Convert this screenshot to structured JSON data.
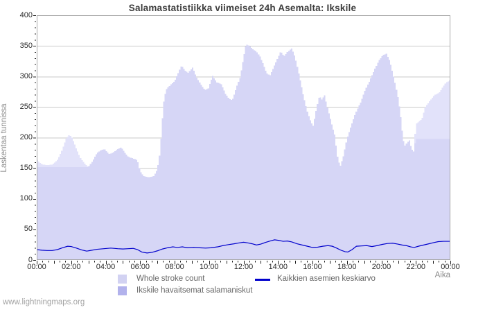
{
  "title": "Salamastatistiikka viimeiset 24h Asemalta: Ikskile",
  "watermark": "www.lightningmaps.org",
  "axes": {
    "y_label": "Laskentaa tunnissa",
    "x_label": "Aika",
    "y_ticks": [
      0,
      50,
      100,
      150,
      200,
      250,
      300,
      350,
      400
    ],
    "x_tick_labels": [
      "00:00",
      "02:00",
      "04:00",
      "06:00",
      "08:00",
      "10:00",
      "12:00",
      "14:00",
      "16:00",
      "18:00",
      "20:00",
      "22:00",
      "00:00"
    ]
  },
  "legend": {
    "items": [
      {
        "label": "Whole stroke count",
        "type": "area",
        "swatch_color": "#d2d2f2"
      },
      {
        "label": "Ikskile havaitsemat salamaniskut",
        "type": "area",
        "swatch_color": "#b2b2ec"
      },
      {
        "label": "Kaikkien asemien keskiarvo",
        "type": "line",
        "swatch_color": "#0000cc"
      }
    ]
  },
  "colors": {
    "background": "#ffffff",
    "plot_border": "#a6a6a6",
    "gridline": "#c9c9c9",
    "tick": "#222222",
    "tick_label": "#2b2b2b",
    "title_text": "#3c3c3c",
    "axis_title_text": "#8a8a8a",
    "legend_text": "#666666",
    "watermark_text": "#a3a3a3",
    "area_whole": "#e2e2fa",
    "area_ikskile": "#d6d6f6",
    "avg_line": "#0000cc"
  },
  "chart_data": {
    "type": "area",
    "title": "Salamastatistiikka viimeiset 24h Asemalta: Ikskile",
    "xlabel": "Aika",
    "ylabel": "Laskentaa tunnissa",
    "x_unit": "hours",
    "xlim": [
      0,
      24
    ],
    "ylim": [
      0,
      400
    ],
    "grid": "horizontal",
    "legend_position": "bottom",
    "series": [
      {
        "name": "Whole stroke count",
        "type": "area",
        "points": [
          [
            0.0,
            165
          ],
          [
            0.15,
            160
          ],
          [
            0.35,
            156
          ],
          [
            0.6,
            155
          ],
          [
            0.9,
            156
          ],
          [
            1.2,
            163
          ],
          [
            1.45,
            178
          ],
          [
            1.7,
            198
          ],
          [
            1.9,
            205
          ],
          [
            2.05,
            200
          ],
          [
            2.3,
            182
          ],
          [
            2.55,
            166
          ],
          [
            2.8,
            157
          ],
          [
            3.0,
            152
          ],
          [
            3.2,
            160
          ],
          [
            3.5,
            175
          ],
          [
            3.75,
            180
          ],
          [
            3.95,
            181
          ],
          [
            4.2,
            173
          ],
          [
            4.45,
            176
          ],
          [
            4.7,
            181
          ],
          [
            4.9,
            184
          ],
          [
            5.1,
            176
          ],
          [
            5.3,
            169
          ],
          [
            5.6,
            166
          ],
          [
            5.85,
            163
          ],
          [
            6.0,
            145
          ],
          [
            6.2,
            137
          ],
          [
            6.5,
            135
          ],
          [
            6.8,
            137
          ],
          [
            7.0,
            148
          ],
          [
            7.15,
            175
          ],
          [
            7.35,
            255
          ],
          [
            7.5,
            278
          ],
          [
            7.75,
            286
          ],
          [
            8.0,
            292
          ],
          [
            8.2,
            305
          ],
          [
            8.4,
            318
          ],
          [
            8.6,
            310
          ],
          [
            8.8,
            306
          ],
          [
            9.05,
            315
          ],
          [
            9.25,
            300
          ],
          [
            9.5,
            288
          ],
          [
            9.75,
            278
          ],
          [
            9.95,
            280
          ],
          [
            10.2,
            301
          ],
          [
            10.45,
            290
          ],
          [
            10.7,
            288
          ],
          [
            10.95,
            272
          ],
          [
            11.15,
            264
          ],
          [
            11.35,
            261
          ],
          [
            11.6,
            283
          ],
          [
            11.8,
            298
          ],
          [
            12.0,
            330
          ],
          [
            12.15,
            353
          ],
          [
            12.35,
            350
          ],
          [
            12.55,
            344
          ],
          [
            12.75,
            341
          ],
          [
            12.95,
            333
          ],
          [
            13.15,
            320
          ],
          [
            13.35,
            305
          ],
          [
            13.55,
            302
          ],
          [
            13.75,
            315
          ],
          [
            13.95,
            328
          ],
          [
            14.15,
            341
          ],
          [
            14.35,
            333
          ],
          [
            14.55,
            340
          ],
          [
            14.8,
            346
          ],
          [
            15.0,
            331
          ],
          [
            15.2,
            306
          ],
          [
            15.45,
            272
          ],
          [
            15.7,
            243
          ],
          [
            15.9,
            226
          ],
          [
            16.05,
            219
          ],
          [
            16.25,
            250
          ],
          [
            16.4,
            268
          ],
          [
            16.55,
            262
          ],
          [
            16.7,
            270
          ],
          [
            16.9,
            246
          ],
          [
            17.1,
            224
          ],
          [
            17.3,
            204
          ],
          [
            17.45,
            170
          ],
          [
            17.6,
            152
          ],
          [
            17.8,
            170
          ],
          [
            18.0,
            198
          ],
          [
            18.25,
            220
          ],
          [
            18.5,
            240
          ],
          [
            18.8,
            258
          ],
          [
            19.05,
            277
          ],
          [
            19.3,
            292
          ],
          [
            19.6,
            311
          ],
          [
            19.85,
            326
          ],
          [
            20.1,
            335
          ],
          [
            20.3,
            337
          ],
          [
            20.5,
            324
          ],
          [
            20.75,
            295
          ],
          [
            20.95,
            268
          ],
          [
            21.1,
            240
          ],
          [
            21.25,
            200
          ],
          [
            21.35,
            186
          ],
          [
            21.5,
            192
          ],
          [
            21.62,
            196
          ],
          [
            21.75,
            182
          ],
          [
            21.88,
            177
          ],
          [
            22.0,
            222
          ],
          [
            22.2,
            227
          ],
          [
            22.35,
            230
          ],
          [
            22.55,
            250
          ],
          [
            22.75,
            258
          ],
          [
            22.95,
            265
          ],
          [
            23.15,
            271
          ],
          [
            23.35,
            273
          ],
          [
            23.55,
            282
          ],
          [
            23.75,
            290
          ],
          [
            23.95,
            293
          ],
          [
            24.0,
            295
          ]
        ]
      },
      {
        "name": "Ikskile havaitsemat salamaniskut",
        "type": "area",
        "points": [
          [
            0.0,
            152
          ],
          [
            0.6,
            152
          ],
          [
            1.2,
            152
          ],
          [
            1.9,
            152
          ],
          [
            2.55,
            152
          ],
          [
            3.0,
            152
          ],
          [
            3.2,
            160
          ],
          [
            3.5,
            175
          ],
          [
            3.75,
            180
          ],
          [
            3.95,
            181
          ],
          [
            4.2,
            173
          ],
          [
            4.45,
            176
          ],
          [
            4.7,
            181
          ],
          [
            4.9,
            184
          ],
          [
            5.1,
            176
          ],
          [
            5.3,
            169
          ],
          [
            5.6,
            166
          ],
          [
            5.85,
            163
          ],
          [
            6.0,
            145
          ],
          [
            6.2,
            137
          ],
          [
            6.5,
            135
          ],
          [
            6.8,
            137
          ],
          [
            7.0,
            148
          ],
          [
            7.15,
            175
          ],
          [
            7.35,
            255
          ],
          [
            7.5,
            278
          ],
          [
            7.75,
            286
          ],
          [
            8.0,
            292
          ],
          [
            8.2,
            305
          ],
          [
            8.4,
            318
          ],
          [
            8.6,
            310
          ],
          [
            8.8,
            306
          ],
          [
            9.05,
            315
          ],
          [
            9.25,
            300
          ],
          [
            9.5,
            288
          ],
          [
            9.75,
            278
          ],
          [
            9.95,
            280
          ],
          [
            10.2,
            301
          ],
          [
            10.45,
            290
          ],
          [
            10.7,
            288
          ],
          [
            10.95,
            272
          ],
          [
            11.15,
            264
          ],
          [
            11.35,
            261
          ],
          [
            11.6,
            283
          ],
          [
            11.8,
            298
          ],
          [
            12.0,
            330
          ],
          [
            12.15,
            353
          ],
          [
            12.35,
            350
          ],
          [
            12.55,
            344
          ],
          [
            12.75,
            341
          ],
          [
            12.95,
            333
          ],
          [
            13.15,
            320
          ],
          [
            13.35,
            305
          ],
          [
            13.55,
            302
          ],
          [
            13.75,
            315
          ],
          [
            13.95,
            328
          ],
          [
            14.15,
            341
          ],
          [
            14.35,
            333
          ],
          [
            14.55,
            340
          ],
          [
            14.8,
            346
          ],
          [
            15.0,
            331
          ],
          [
            15.2,
            306
          ],
          [
            15.45,
            272
          ],
          [
            15.7,
            243
          ],
          [
            15.9,
            226
          ],
          [
            16.05,
            219
          ],
          [
            16.25,
            250
          ],
          [
            16.4,
            268
          ],
          [
            16.55,
            262
          ],
          [
            16.7,
            270
          ],
          [
            16.9,
            246
          ],
          [
            17.1,
            224
          ],
          [
            17.3,
            204
          ],
          [
            17.45,
            170
          ],
          [
            17.6,
            152
          ],
          [
            17.8,
            170
          ],
          [
            18.0,
            198
          ],
          [
            18.25,
            220
          ],
          [
            18.5,
            240
          ],
          [
            18.8,
            258
          ],
          [
            19.05,
            277
          ],
          [
            19.3,
            292
          ],
          [
            19.6,
            311
          ],
          [
            19.85,
            326
          ],
          [
            20.1,
            335
          ],
          [
            20.3,
            337
          ],
          [
            20.5,
            324
          ],
          [
            20.75,
            295
          ],
          [
            20.95,
            268
          ],
          [
            21.1,
            240
          ],
          [
            21.25,
            200
          ],
          [
            21.35,
            186
          ],
          [
            21.5,
            192
          ],
          [
            21.62,
            196
          ],
          [
            21.75,
            182
          ],
          [
            21.88,
            177
          ],
          [
            22.0,
            198
          ],
          [
            22.5,
            198
          ],
          [
            23.0,
            198
          ],
          [
            23.5,
            198
          ],
          [
            24.0,
            198
          ]
        ]
      },
      {
        "name": "Kaikkien asemien keskiarvo",
        "type": "line",
        "points": [
          [
            0.0,
            17
          ],
          [
            0.3,
            16
          ],
          [
            0.6,
            15.5
          ],
          [
            0.9,
            15.5
          ],
          [
            1.2,
            17
          ],
          [
            1.5,
            20
          ],
          [
            1.8,
            22.5
          ],
          [
            2.0,
            22
          ],
          [
            2.3,
            19.5
          ],
          [
            2.6,
            16.5
          ],
          [
            2.9,
            14.5
          ],
          [
            3.2,
            16
          ],
          [
            3.5,
            17.5
          ],
          [
            3.9,
            18.5
          ],
          [
            4.3,
            19.5
          ],
          [
            4.7,
            18.5
          ],
          [
            5.0,
            18
          ],
          [
            5.3,
            18.5
          ],
          [
            5.6,
            19
          ],
          [
            5.85,
            17
          ],
          [
            6.1,
            13
          ],
          [
            6.4,
            11.5
          ],
          [
            6.7,
            12.5
          ],
          [
            7.0,
            15
          ],
          [
            7.3,
            18
          ],
          [
            7.6,
            20
          ],
          [
            7.9,
            21.5
          ],
          [
            8.15,
            20.5
          ],
          [
            8.45,
            21.5
          ],
          [
            8.75,
            20
          ],
          [
            9.1,
            20.5
          ],
          [
            9.45,
            20
          ],
          [
            9.8,
            19.5
          ],
          [
            10.1,
            20
          ],
          [
            10.5,
            21.5
          ],
          [
            10.8,
            23.5
          ],
          [
            11.1,
            25
          ],
          [
            11.45,
            26.5
          ],
          [
            11.75,
            28
          ],
          [
            12.0,
            29
          ],
          [
            12.25,
            28
          ],
          [
            12.5,
            26.5
          ],
          [
            12.75,
            24.5
          ],
          [
            13.0,
            26
          ],
          [
            13.3,
            29
          ],
          [
            13.6,
            31.5
          ],
          [
            13.8,
            33
          ],
          [
            14.05,
            32
          ],
          [
            14.3,
            30.5
          ],
          [
            14.55,
            31
          ],
          [
            14.8,
            29.5
          ],
          [
            15.1,
            26.5
          ],
          [
            15.4,
            24.5
          ],
          [
            15.7,
            22.5
          ],
          [
            16.0,
            20.5
          ],
          [
            16.3,
            21
          ],
          [
            16.6,
            22.5
          ],
          [
            16.9,
            23.5
          ],
          [
            17.15,
            22.5
          ],
          [
            17.4,
            19.5
          ],
          [
            17.65,
            16
          ],
          [
            17.9,
            13.5
          ],
          [
            18.05,
            13
          ],
          [
            18.3,
            17
          ],
          [
            18.55,
            22.5
          ],
          [
            18.85,
            23
          ],
          [
            19.15,
            23.5
          ],
          [
            19.45,
            22
          ],
          [
            19.75,
            23.5
          ],
          [
            20.05,
            25.5
          ],
          [
            20.35,
            27
          ],
          [
            20.65,
            27.5
          ],
          [
            20.95,
            26
          ],
          [
            21.2,
            24.5
          ],
          [
            21.45,
            23.5
          ],
          [
            21.7,
            21.5
          ],
          [
            21.9,
            20.5
          ],
          [
            22.15,
            22.5
          ],
          [
            22.45,
            24.5
          ],
          [
            22.75,
            26.5
          ],
          [
            23.05,
            28.5
          ],
          [
            23.3,
            30
          ],
          [
            23.6,
            30.5
          ],
          [
            24.0,
            30.5
          ]
        ]
      }
    ]
  }
}
